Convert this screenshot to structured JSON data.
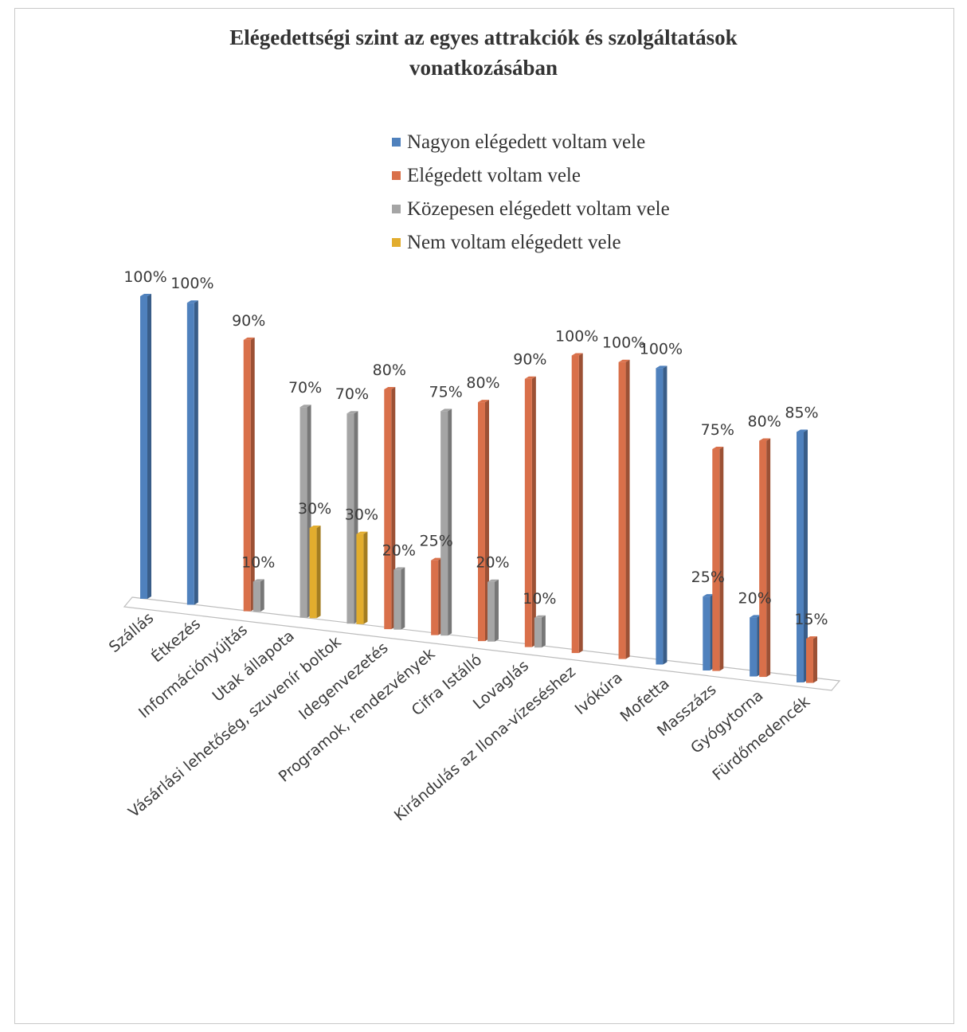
{
  "chart_data": {
    "type": "bar",
    "title": "Elégedettségi szint az egyes attrakciók és szolgáltatások vonatkozásában",
    "title_lines": [
      "Elégedettségi szint az egyes attrakciók és szolgáltatások",
      "vonatkozásában"
    ],
    "legend_position": "top",
    "grid": false,
    "ylim": [
      0,
      100
    ],
    "categories": [
      "Szállás",
      "Étkezés",
      "Információnyújtás",
      "Utak állapota",
      "Vásárlási lehetőség, szuvenír boltok",
      "Idegenvezetés",
      "Programok, rendezvények",
      "Cifra Istálló",
      "Lovaglás",
      "Kirándulás az Ilona-vízeséshez",
      "Ivókúra",
      "Mofetta",
      "Masszázs",
      "Gyógytorna",
      "Fürdőmedencék"
    ],
    "series": [
      {
        "name": "Nagyon elégedett voltam vele",
        "color": "#4f81bd",
        "values": [
          100,
          100,
          null,
          null,
          null,
          null,
          null,
          null,
          null,
          null,
          null,
          100,
          25,
          20,
          85
        ]
      },
      {
        "name": "Elégedett voltam vele",
        "color": "#d9704a",
        "values": [
          null,
          null,
          90,
          null,
          null,
          80,
          25,
          80,
          90,
          100,
          100,
          null,
          75,
          80,
          15
        ]
      },
      {
        "name": "Közepesen elégedett voltam vele",
        "color": "#a5a5a5",
        "values": [
          null,
          null,
          10,
          70,
          70,
          20,
          75,
          20,
          10,
          null,
          null,
          null,
          null,
          null,
          null
        ]
      },
      {
        "name": "Nem voltam elégedett vele",
        "color": "#e2ad2e",
        "values": [
          null,
          null,
          null,
          30,
          30,
          null,
          null,
          null,
          null,
          null,
          null,
          null,
          null,
          null,
          null
        ]
      }
    ],
    "value_suffix": "%"
  }
}
